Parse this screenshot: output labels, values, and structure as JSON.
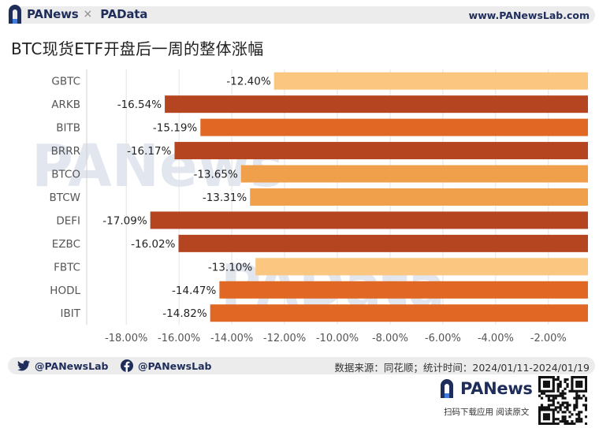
{
  "header": {
    "brand_left": "PANews",
    "brand_sep": "×",
    "brand_right": "PAData",
    "site_url": "www.PANewsLab.com"
  },
  "chart_data": {
    "type": "bar",
    "orientation": "horizontal",
    "title": "BTC现货ETF开盘后一周的整体涨幅",
    "categories": [
      "GBTC",
      "ARKB",
      "BITB",
      "BRRR",
      "BTCO",
      "BTCW",
      "DEFI",
      "EZBC",
      "FBTC",
      "HODL",
      "IBIT"
    ],
    "values": [
      -12.4,
      -16.54,
      -15.19,
      -16.17,
      -13.65,
      -13.31,
      -17.09,
      -16.02,
      -13.1,
      -14.47,
      -14.82
    ],
    "value_labels": [
      "-12.40%",
      "-16.54%",
      "-15.19%",
      "-16.17%",
      "-13.65%",
      "-13.31%",
      "-17.09%",
      "-16.02%",
      "-13.10%",
      "-14.47%",
      "-14.82%"
    ],
    "xlim": [
      -19.5,
      -0.5
    ],
    "xticks": [
      -18,
      -16,
      -14,
      -12,
      -10,
      -8,
      -6,
      -4,
      -2
    ],
    "xtick_labels": [
      "-18.00%",
      "-16.00%",
      "-14.00%",
      "-12.00%",
      "-10.00%",
      "-8.00%",
      "-6.00%",
      "-4.00%",
      "-2.00%"
    ],
    "grid": true,
    "colors": {
      "darkest": "#b54520",
      "dark": "#e06824",
      "medium": "#f0a04a",
      "light": "#fbc67f"
    }
  },
  "watermark": {
    "top": "PANews",
    "bottom": "PAData"
  },
  "footer": {
    "twitter_handle": "@PANewsLab",
    "facebook_handle": "@PANewsLab",
    "source_text": "数据来源：同花顺；统计时间：2024/01/11-2024/01/19",
    "brand": "PANews",
    "actions": "扫码下载应用  阅读原文"
  }
}
